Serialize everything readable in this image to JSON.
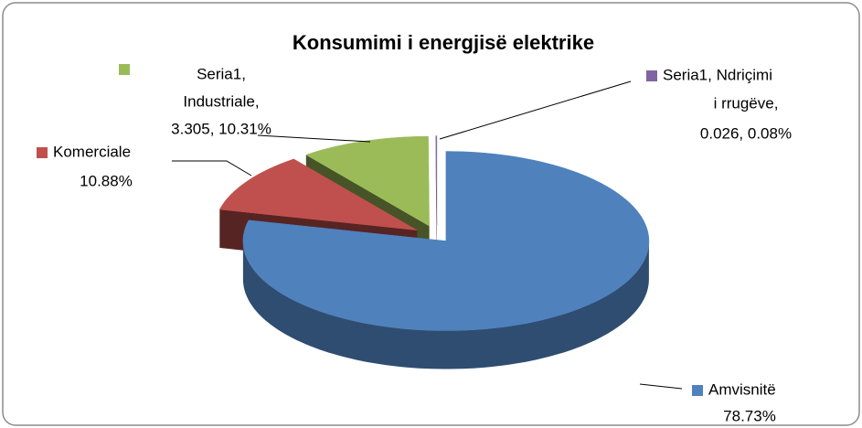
{
  "chart_data": {
    "type": "pie",
    "title": "Konsumimi i energjisë elektrike",
    "values": [
      78.73,
      10.88,
      10.31,
      0.08
    ],
    "value_labels": [
      [
        "Amvisnitë",
        "78.73%"
      ],
      [
        "Komerciale",
        "10.88%"
      ],
      [
        "Seria1,",
        "Industriale,",
        "3.305, 10.31%"
      ],
      [
        "Seria1, Ndriçimi",
        "i rrugëve,",
        "0.026, 0.08%"
      ]
    ],
    "colors": [
      "#4f81bd",
      "#c0504d",
      "#9bbb59",
      "#8064a2"
    ]
  }
}
